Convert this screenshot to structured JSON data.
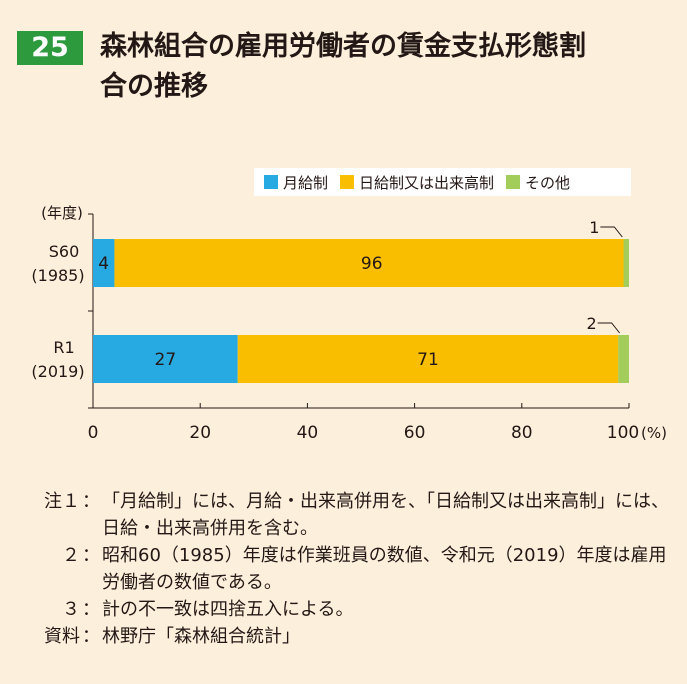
{
  "figure": {
    "number": "25",
    "title_line1": "森林組合の雇用労働者の賃金支払形態割",
    "title_line2": "合の推移"
  },
  "colors": {
    "monthly": "#27a9e1",
    "daily": "#f9be00",
    "other": "#a2cd5a",
    "title_badge": "#2e9a3e"
  },
  "chart_data": {
    "type": "bar",
    "orientation": "horizontal",
    "stacked": true,
    "categories": [
      {
        "line1": "S60",
        "line2": "(1985)"
      },
      {
        "line1": "R1",
        "line2": "(2019)"
      }
    ],
    "series": [
      {
        "name": "月給制",
        "color_key": "monthly",
        "values": [
          4,
          27
        ],
        "labels": [
          "4",
          "27"
        ]
      },
      {
        "name": "日給制又は出来高制",
        "color_key": "daily",
        "values": [
          96,
          71
        ],
        "labels": [
          "96",
          "71"
        ]
      },
      {
        "name": "その他",
        "color_key": "other",
        "values": [
          1,
          2
        ],
        "callouts": [
          "1",
          "2"
        ]
      }
    ],
    "x_ticks": [
      "0",
      "20",
      "40",
      "60",
      "80",
      "100"
    ],
    "x_unit": "(%)",
    "y_axis_label": "(年度)",
    "xlim": [
      0,
      100
    ],
    "grid": false,
    "legend_position": "top-right"
  },
  "notes": [
    {
      "label": "注１",
      "text": "「月給制」には、月給・出来高併用を、「日給制又は出来高制」には、日給・出来高併用を含む。"
    },
    {
      "label": "２",
      "text": "昭和60（1985）年度は作業班員の数値、令和元（2019）年度は雇用労働者の数値である。"
    },
    {
      "label": "３",
      "text": "計の不一致は四捨五入による。"
    },
    {
      "label": "資料",
      "text": "林野庁「森林組合統計」"
    }
  ],
  "note_separator": "："
}
